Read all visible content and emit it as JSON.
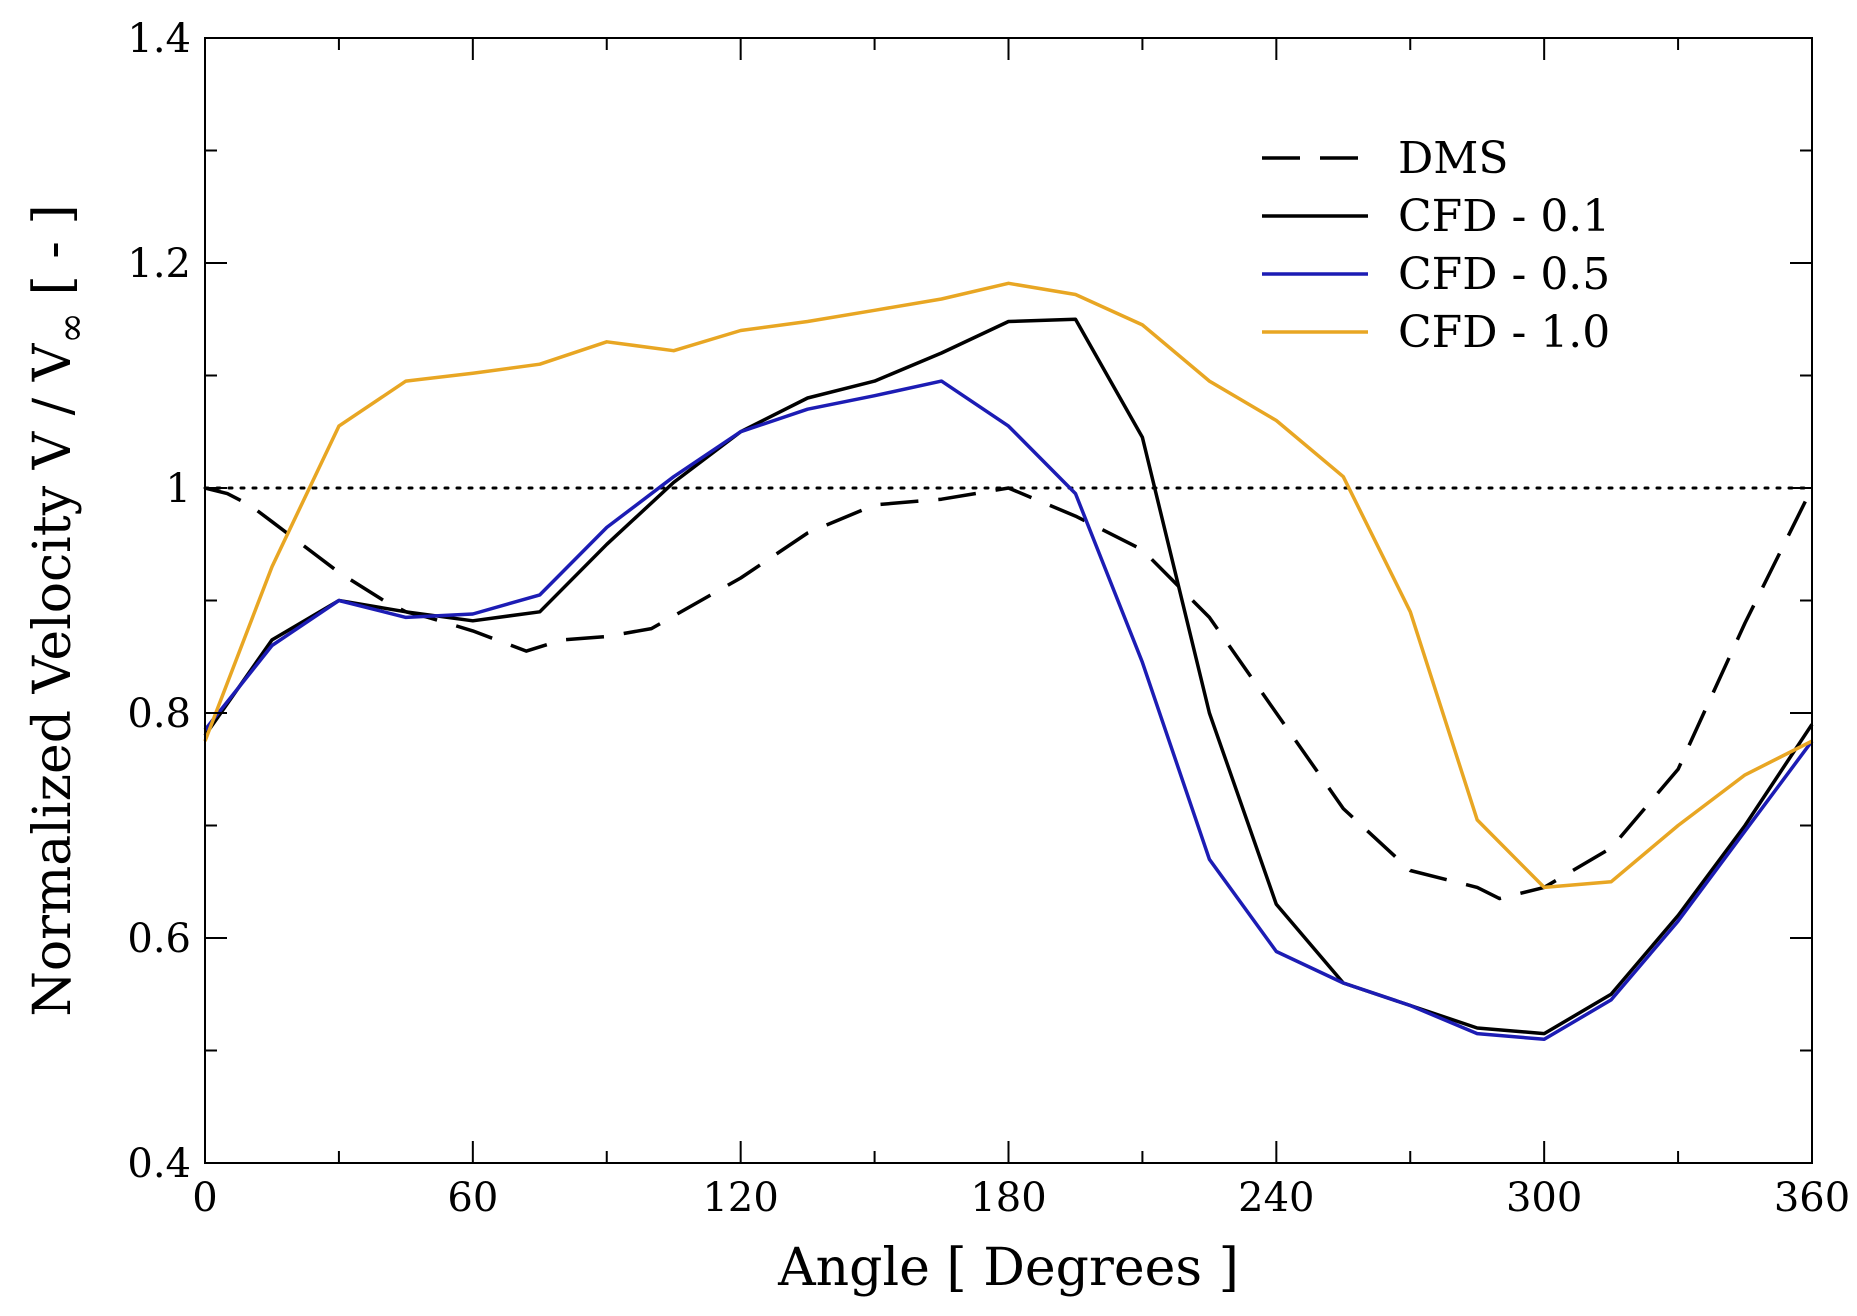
{
  "chart_data": {
    "type": "line",
    "title": "",
    "xlabel": "Angle [ Degrees ]",
    "ylabel_main": "Normalized Velocity V / V",
    "ylabel_sub": "∞",
    "ylabel_tail": " [ - ]",
    "xlim": [
      0,
      360
    ],
    "ylim": [
      0.4,
      1.4
    ],
    "x_ticks": [
      0,
      60,
      120,
      180,
      240,
      300,
      360
    ],
    "x_tick_labels": [
      "0",
      "60",
      "120",
      "180",
      "240",
      "300",
      "360"
    ],
    "x_minor_ticks": [
      30,
      90,
      150,
      210,
      270,
      330
    ],
    "y_ticks": [
      0.4,
      0.6,
      0.8,
      1.0,
      1.2,
      1.4
    ],
    "y_tick_labels": [
      "0.4",
      "0.6",
      "0.8",
      "1",
      "1.2",
      "1.4"
    ],
    "y_minor_ticks": [
      0.5,
      0.7,
      0.9,
      1.1,
      1.3
    ],
    "reference_line": {
      "y": 1.0,
      "style": "dotted",
      "color": "#000000"
    },
    "legend": {
      "position": "top-right"
    },
    "series": [
      {
        "name": "DMS",
        "color": "#000000",
        "style": "dashed",
        "x": [
          0,
          5,
          10,
          15,
          20,
          25,
          30,
          40,
          45,
          50,
          60,
          72,
          80,
          90,
          100,
          120,
          135,
          150,
          165,
          180,
          195,
          210,
          225,
          240,
          255,
          270,
          285,
          290,
          300,
          315,
          330,
          345,
          360
        ],
        "y": [
          1.0,
          0.995,
          0.985,
          0.97,
          0.955,
          0.94,
          0.925,
          0.9,
          0.89,
          0.885,
          0.873,
          0.855,
          0.865,
          0.868,
          0.875,
          0.92,
          0.96,
          0.985,
          0.99,
          1.0,
          0.975,
          0.945,
          0.885,
          0.8,
          0.715,
          0.66,
          0.645,
          0.635,
          0.645,
          0.68,
          0.75,
          0.88,
          1.0
        ]
      },
      {
        "name": "CFD - 0.1",
        "color": "#000000",
        "style": "solid",
        "x": [
          0,
          15,
          30,
          45,
          60,
          75,
          90,
          105,
          120,
          135,
          150,
          165,
          180,
          195,
          210,
          225,
          240,
          255,
          270,
          285,
          300,
          315,
          330,
          345,
          360
        ],
        "y": [
          0.78,
          0.865,
          0.9,
          0.89,
          0.882,
          0.89,
          0.95,
          1.005,
          1.05,
          1.08,
          1.095,
          1.12,
          1.148,
          1.15,
          1.045,
          0.8,
          0.63,
          0.56,
          0.54,
          0.52,
          0.515,
          0.55,
          0.62,
          0.7,
          0.79
        ]
      },
      {
        "name": "CFD - 0.5",
        "color": "#1c1cb4",
        "style": "solid",
        "x": [
          0,
          15,
          30,
          45,
          60,
          75,
          90,
          105,
          120,
          135,
          150,
          165,
          180,
          195,
          210,
          225,
          240,
          255,
          270,
          285,
          300,
          315,
          330,
          345,
          360
        ],
        "y": [
          0.785,
          0.86,
          0.9,
          0.885,
          0.888,
          0.905,
          0.965,
          1.01,
          1.05,
          1.07,
          1.082,
          1.095,
          1.055,
          0.995,
          0.845,
          0.67,
          0.588,
          0.56,
          0.54,
          0.515,
          0.51,
          0.545,
          0.615,
          0.695,
          0.775
        ]
      },
      {
        "name": "CFD - 1.0",
        "color": "#e8a623",
        "style": "solid",
        "x": [
          0,
          15,
          30,
          45,
          60,
          75,
          90,
          105,
          120,
          135,
          150,
          165,
          180,
          195,
          210,
          225,
          240,
          255,
          270,
          285,
          300,
          315,
          330,
          345,
          360
        ],
        "y": [
          0.775,
          0.93,
          1.055,
          1.095,
          1.102,
          1.11,
          1.13,
          1.122,
          1.14,
          1.148,
          1.158,
          1.168,
          1.182,
          1.172,
          1.145,
          1.095,
          1.06,
          1.01,
          0.89,
          0.705,
          0.645,
          0.65,
          0.7,
          0.745,
          0.775
        ]
      }
    ]
  }
}
